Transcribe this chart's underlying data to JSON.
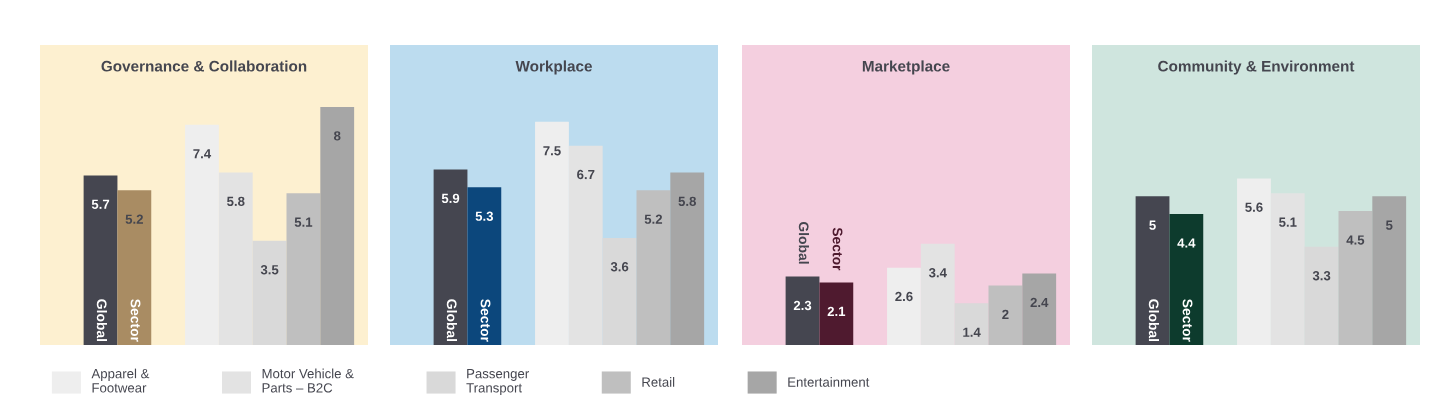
{
  "chart_data": [
    {
      "type": "bar",
      "title": "Governance & Collaboration",
      "categories": [
        null
      ],
      "data_labels": true,
      "legend": "bottom",
      "tick_labels": false,
      "series": [
        {
          "name": "Global",
          "color": "#454650",
          "values": [
            5.7
          ]
        },
        {
          "name": "Sector",
          "color": "#a98c63",
          "values": [
            5.2
          ]
        },
        {
          "name": "Apparel &\nFootwear",
          "color": "#eeeeee",
          "values": [
            7.4
          ]
        },
        {
          "name": "Motor Vehicle &\nParts – B2C",
          "color": "#e3e3e3",
          "values": [
            5.8
          ]
        },
        {
          "name": "Passenger\nTransport",
          "color": "#d9d9d9",
          "values": [
            3.5
          ]
        },
        {
          "name": "Retail",
          "color": "#bfbfbf",
          "values": [
            5.1
          ]
        },
        {
          "name": "Entertainment",
          "color": "#a6a6a6",
          "values": [
            8
          ]
        }
      ]
    },
    {
      "type": "bar",
      "title": "Workplace",
      "categories": [
        null
      ],
      "data_labels": true,
      "tick_labels": false,
      "series": [
        {
          "name": "Global",
          "color": "#454650",
          "values": [
            5.9
          ]
        },
        {
          "name": "Sector",
          "color": "#0c477c",
          "values": [
            5.3
          ]
        },
        {
          "color": "#eeeeee",
          "values": [
            7.5
          ]
        },
        {
          "color": "#e3e3e3",
          "values": [
            6.7
          ]
        },
        {
          "color": "#d9d9d9",
          "values": [
            3.6
          ]
        },
        {
          "color": "#bfbfbf",
          "values": [
            5.2
          ]
        },
        {
          "color": "#a6a6a6",
          "values": [
            5.8
          ]
        }
      ]
    },
    {
      "type": "bar",
      "title": "Marketplace",
      "categories": [
        null
      ],
      "data_labels": true,
      "tick_labels": false,
      "series": [
        {
          "name": "Global",
          "color": "#454650",
          "values": [
            2.3
          ]
        },
        {
          "name": "Sector",
          "color": "#4f1a2f",
          "values": [
            2.1
          ]
        },
        {
          "color": "#eeeeee",
          "values": [
            2.6
          ]
        },
        {
          "color": "#e3e3e3",
          "values": [
            3.4
          ]
        },
        {
          "color": "#d9d9d9",
          "values": [
            1.4
          ]
        },
        {
          "color": "#bfbfbf",
          "values": [
            2
          ]
        },
        {
          "color": "#a6a6a6",
          "values": [
            2.4
          ]
        }
      ]
    },
    {
      "type": "bar",
      "title": "Community & Environment",
      "categories": [
        null
      ],
      "data_labels": true,
      "tick_labels": false,
      "series": [
        {
          "name": "Global",
          "color": "#454650",
          "values": [
            5
          ]
        },
        {
          "name": "Sector",
          "color": "#0d3b2d",
          "values": [
            4.4
          ]
        },
        {
          "color": "#eeeeee",
          "values": [
            5.6
          ]
        },
        {
          "color": "#e3e3e3",
          "values": [
            5.1
          ]
        },
        {
          "color": "#d9d9d9",
          "values": [
            3.3
          ]
        },
        {
          "color": "#bfbfbf",
          "values": [
            4.5
          ]
        },
        {
          "color": "#a6a6a6",
          "values": [
            5
          ]
        }
      ]
    }
  ]
}
